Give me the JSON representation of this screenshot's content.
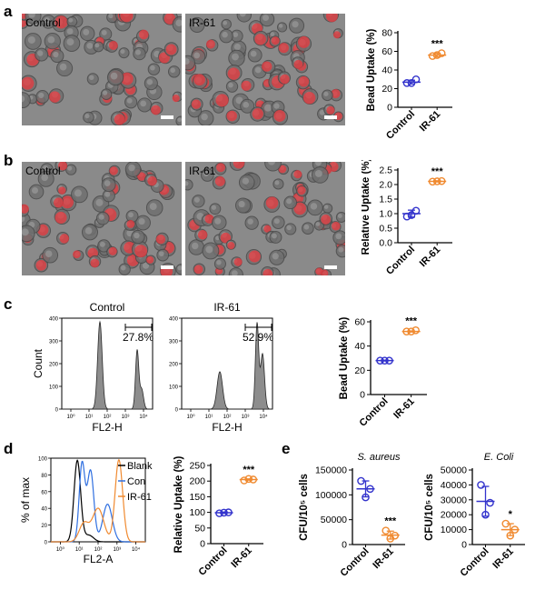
{
  "panels": {
    "a": {
      "label": "a",
      "images": [
        {
          "label": "Control"
        },
        {
          "label": "IR-61"
        }
      ],
      "chart": {
        "ylabel": "Bead Uptake (%)",
        "yticks": [
          "0",
          "20",
          "40",
          "60",
          "80"
        ],
        "ymax": 80,
        "categories": [
          "Control",
          "IR-61"
        ],
        "sig": "***",
        "points": [
          [
            26,
            30,
            26
          ],
          [
            55,
            58,
            56
          ]
        ],
        "means": [
          27,
          56
        ],
        "sd": [
          2,
          2
        ]
      }
    },
    "b": {
      "label": "b",
      "images": [
        {
          "label": "Control"
        },
        {
          "label": "IR-61"
        }
      ],
      "chart": {
        "ylabel": "Relative Uptake (%)",
        "yticks": [
          "0.0",
          "0.5",
          "1.0",
          "1.5",
          "2.0",
          "2.5"
        ],
        "ymax": 2.5,
        "categories": [
          "Control",
          "IR-61"
        ],
        "sig": "***",
        "points": [
          [
            0.9,
            1.1,
            0.95
          ],
          [
            2.1,
            2.12,
            2.11
          ]
        ],
        "means": [
          1.0,
          2.11
        ],
        "sd": [
          0.12,
          0.02
        ]
      }
    },
    "c": {
      "label": "c",
      "histograms": [
        {
          "title": "Control",
          "gate": "27.8%",
          "ylabel": "Count",
          "xlabel": "FL2-H",
          "yticks": [
            "0",
            "100",
            "200",
            "300",
            "400"
          ],
          "xticks": [
            "10⁰",
            "10¹",
            "10²",
            "10³",
            "10⁴"
          ]
        },
        {
          "title": "IR-61",
          "gate": "52.9%",
          "ylabel": "",
          "xlabel": "FL2-H",
          "yticks": [
            "0",
            "100",
            "200",
            "300",
            "400"
          ],
          "xticks": [
            "10⁰",
            "10¹",
            "10²",
            "10³",
            "10⁴"
          ]
        }
      ],
      "chart": {
        "ylabel": "Bead Uptake (%)",
        "yticks": [
          "0",
          "20",
          "40",
          "60"
        ],
        "ymax": 60,
        "categories": [
          "Control",
          "IR-61"
        ],
        "sig": "***",
        "points": [
          [
            28,
            28,
            28
          ],
          [
            52,
            53,
            52
          ]
        ],
        "means": [
          28,
          52
        ],
        "sd": [
          0.3,
          0.4
        ]
      }
    },
    "d": {
      "label": "d",
      "overlay": {
        "ylabel": "% of max",
        "xlabel": "FL2-A",
        "yticks": [
          "0",
          "20",
          "40",
          "60",
          "80",
          "100"
        ],
        "xticks": [
          "10⁰",
          "10¹",
          "10²",
          "10³",
          "10⁴"
        ],
        "legend": [
          {
            "name": "Blank",
            "color": "#000000"
          },
          {
            "name": "Con",
            "color": "#2f6fe0"
          },
          {
            "name": "IR-61",
            "color": "#f08a30"
          }
        ]
      },
      "chart": {
        "ylabel": "Relative Uptake (%)",
        "yticks": [
          "0",
          "50",
          "100",
          "150",
          "200",
          "250"
        ],
        "ymax": 250,
        "categories": [
          "Control",
          "IR-61"
        ],
        "sig": "***",
        "points": [
          [
            97,
            100,
            99
          ],
          [
            202,
            205,
            207
          ]
        ],
        "means": [
          99,
          205
        ],
        "sd": [
          2,
          2
        ]
      }
    },
    "e": {
      "label": "e",
      "charts": [
        {
          "title": "S. aureus",
          "ylabel": "CFU/10⁵ cells",
          "yticks": [
            "0",
            "50000",
            "100000",
            "150000"
          ],
          "ymax": 150000,
          "categories": [
            "Control",
            "IR-61"
          ],
          "sig": "***",
          "points": [
            [
              128000,
              112000,
              95000
            ],
            [
              28000,
              18000,
              12000
            ]
          ],
          "means": [
            112000,
            19000
          ],
          "sd": [
            16000,
            8000
          ]
        },
        {
          "title": "E. Coli",
          "ylabel": "CFU/10⁵ cells",
          "yticks": [
            "0",
            "10000",
            "20000",
            "30000",
            "40000",
            "50000"
          ],
          "ymax": 50000,
          "categories": [
            "Control",
            "IR-61"
          ],
          "sig": "*",
          "points": [
            [
              40000,
              28000,
              20000
            ],
            [
              14000,
              10000,
              6000
            ]
          ],
          "means": [
            29000,
            10000
          ],
          "sd": [
            10000,
            4000
          ]
        }
      ]
    }
  },
  "colors": {
    "control": "#3333cc",
    "ir61": "#f08a30",
    "cells": "#e8393f"
  }
}
